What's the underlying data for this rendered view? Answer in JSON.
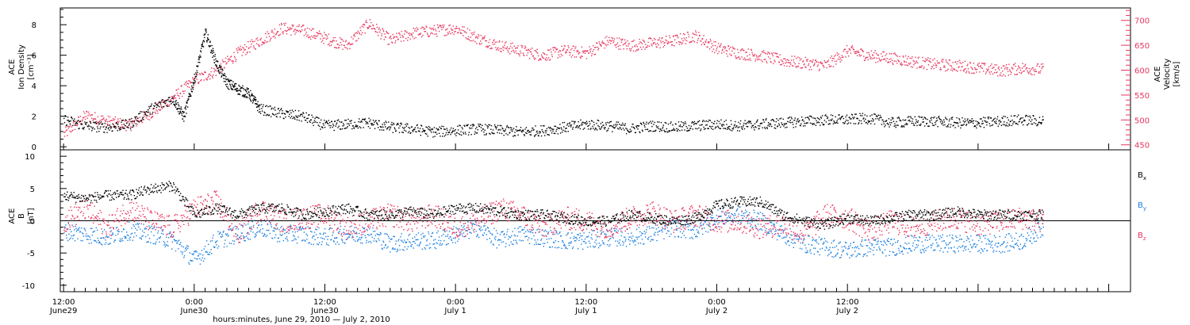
{
  "chart_data": [
    {
      "type": "scatter",
      "panel": "top",
      "ylabel_lines": [
        "ACE",
        "Ion Density",
        "[cm⁻³]"
      ],
      "ylabel_right_lines": [
        "ACE",
        "Velocity",
        "[km/s]"
      ],
      "xlim_hours": [
        -0.3,
        98
      ],
      "ylim_left": [
        -0.2,
        9.1
      ],
      "yticks_left": [
        0,
        2,
        4,
        6,
        8
      ],
      "ylim_right": [
        440,
        725
      ],
      "yticks_right": [
        450,
        500,
        550,
        600,
        650,
        700
      ],
      "series": [
        {
          "color": "#000000",
          "axis": "left",
          "points": [
            [
              0,
              1.8
            ],
            [
              2,
              1.4
            ],
            [
              4,
              1.3
            ],
            [
              6,
              1.5
            ],
            [
              8,
              2.5
            ],
            [
              10,
              3.2
            ],
            [
              11,
              2.0
            ],
            [
              12,
              4.5
            ],
            [
              13,
              7.5
            ],
            [
              14,
              5.5
            ],
            [
              15,
              4.2
            ],
            [
              16,
              3.8
            ],
            [
              17,
              3.5
            ],
            [
              18,
              2.5
            ],
            [
              20,
              2.2
            ],
            [
              22,
              2.0
            ],
            [
              24,
              1.4
            ],
            [
              26,
              1.5
            ],
            [
              28,
              1.6
            ],
            [
              30,
              1.3
            ],
            [
              32,
              1.2
            ],
            [
              34,
              1.0
            ],
            [
              36,
              1.1
            ],
            [
              38,
              1.2
            ],
            [
              40,
              1.1
            ],
            [
              42,
              1.0
            ],
            [
              44,
              1.1
            ],
            [
              46,
              1.3
            ],
            [
              48,
              1.5
            ],
            [
              50,
              1.4
            ],
            [
              52,
              1.2
            ],
            [
              54,
              1.4
            ],
            [
              56,
              1.3
            ],
            [
              58,
              1.4
            ],
            [
              60,
              1.5
            ],
            [
              62,
              1.4
            ],
            [
              64,
              1.5
            ],
            [
              66,
              1.6
            ],
            [
              68,
              1.7
            ],
            [
              70,
              1.8
            ],
            [
              72,
              1.8
            ],
            [
              74,
              1.9
            ],
            [
              76,
              1.6
            ],
            [
              78,
              1.7
            ],
            [
              80,
              1.7
            ],
            [
              82,
              1.6
            ],
            [
              84,
              1.6
            ],
            [
              86,
              1.7
            ],
            [
              88,
              1.8
            ],
            [
              90,
              1.7
            ]
          ]
        },
        {
          "color": "#e8355d",
          "axis": "right",
          "points": [
            [
              0,
              472
            ],
            [
              2,
              510
            ],
            [
              4,
              498
            ],
            [
              6,
              490
            ],
            [
              8,
              515
            ],
            [
              10,
              545
            ],
            [
              12,
              580
            ],
            [
              14,
              600
            ],
            [
              16,
              635
            ],
            [
              18,
              660
            ],
            [
              20,
              685
            ],
            [
              22,
              680
            ],
            [
              24,
              665
            ],
            [
              26,
              650
            ],
            [
              28,
              695
            ],
            [
              30,
              660
            ],
            [
              32,
              675
            ],
            [
              34,
              680
            ],
            [
              36,
              685
            ],
            [
              38,
              665
            ],
            [
              40,
              650
            ],
            [
              42,
              640
            ],
            [
              44,
              630
            ],
            [
              46,
              640
            ],
            [
              48,
              635
            ],
            [
              50,
              660
            ],
            [
              52,
              650
            ],
            [
              54,
              655
            ],
            [
              56,
              660
            ],
            [
              58,
              670
            ],
            [
              60,
              645
            ],
            [
              62,
              635
            ],
            [
              64,
              630
            ],
            [
              66,
              620
            ],
            [
              68,
              615
            ],
            [
              70,
              610
            ],
            [
              72,
              640
            ],
            [
              74,
              630
            ],
            [
              76,
              625
            ],
            [
              78,
              618
            ],
            [
              80,
              612
            ],
            [
              82,
              610
            ],
            [
              84,
              605
            ],
            [
              86,
              600
            ],
            [
              88,
              605
            ],
            [
              90,
              602
            ]
          ]
        }
      ]
    },
    {
      "type": "scatter",
      "panel": "bottom",
      "ylabel_lines": [
        "ACE",
        "B",
        "[nT]"
      ],
      "xlim_hours": [
        -0.3,
        98
      ],
      "ylim": [
        -11,
        11
      ],
      "yticks": [
        -10,
        -5,
        0,
        5,
        10
      ],
      "zero_line": true,
      "legend_placement": "right",
      "series": [
        {
          "name": "Bx",
          "legend_base": "B",
          "legend_sub": "x",
          "color": "#000000",
          "points": [
            [
              0,
              4
            ],
            [
              2,
              3.5
            ],
            [
              4,
              4
            ],
            [
              6,
              4
            ],
            [
              8,
              5
            ],
            [
              10,
              5.5
            ],
            [
              12,
              1
            ],
            [
              14,
              2
            ],
            [
              16,
              1
            ],
            [
              18,
              2
            ],
            [
              20,
              2
            ],
            [
              22,
              1
            ],
            [
              24,
              1.5
            ],
            [
              26,
              2
            ],
            [
              28,
              1
            ],
            [
              30,
              1
            ],
            [
              32,
              1.5
            ],
            [
              34,
              1
            ],
            [
              36,
              2
            ],
            [
              38,
              2
            ],
            [
              40,
              1.5
            ],
            [
              42,
              1
            ],
            [
              44,
              1
            ],
            [
              46,
              0.5
            ],
            [
              48,
              0
            ],
            [
              50,
              0
            ],
            [
              52,
              1
            ],
            [
              54,
              0.5
            ],
            [
              56,
              0
            ],
            [
              58,
              0.5
            ],
            [
              60,
              2.5
            ],
            [
              62,
              3
            ],
            [
              64,
              3
            ],
            [
              66,
              1
            ],
            [
              68,
              0
            ],
            [
              70,
              -0.5
            ],
            [
              72,
              0.5
            ],
            [
              74,
              0
            ],
            [
              76,
              0.5
            ],
            [
              78,
              1
            ],
            [
              80,
              1
            ],
            [
              82,
              1.5
            ],
            [
              84,
              1
            ],
            [
              86,
              1
            ],
            [
              88,
              1
            ],
            [
              90,
              1
            ]
          ]
        },
        {
          "name": "By",
          "legend_base": "B",
          "legend_sub": "y",
          "color": "#1a7fe0",
          "points": [
            [
              0,
              -1.5
            ],
            [
              2,
              -2
            ],
            [
              4,
              -2.5
            ],
            [
              6,
              -1.5
            ],
            [
              8,
              -2
            ],
            [
              10,
              -3
            ],
            [
              12,
              -6
            ],
            [
              14,
              -3
            ],
            [
              16,
              -2
            ],
            [
              18,
              -1
            ],
            [
              20,
              -2
            ],
            [
              22,
              -2
            ],
            [
              24,
              -2.5
            ],
            [
              26,
              -2
            ],
            [
              28,
              -2
            ],
            [
              30,
              -3.5
            ],
            [
              32,
              -3
            ],
            [
              34,
              -3
            ],
            [
              36,
              -2
            ],
            [
              38,
              -1
            ],
            [
              40,
              -3
            ],
            [
              42,
              -2
            ],
            [
              44,
              -2.5
            ],
            [
              46,
              -3
            ],
            [
              48,
              -3
            ],
            [
              50,
              -2.5
            ],
            [
              52,
              -2.5
            ],
            [
              54,
              -2
            ],
            [
              56,
              -1
            ],
            [
              58,
              -1.5
            ],
            [
              60,
              0.5
            ],
            [
              62,
              1
            ],
            [
              64,
              0
            ],
            [
              66,
              -2
            ],
            [
              68,
              -3.5
            ],
            [
              70,
              -4
            ],
            [
              72,
              -4.5
            ],
            [
              74,
              -4
            ],
            [
              76,
              -4
            ],
            [
              78,
              -3.5
            ],
            [
              80,
              -3.5
            ],
            [
              82,
              -3.5
            ],
            [
              84,
              -3.5
            ],
            [
              86,
              -3.5
            ],
            [
              88,
              -3
            ],
            [
              90,
              -1
            ]
          ]
        },
        {
          "name": "Bz",
          "legend_base": "B",
          "legend_sub": "z",
          "color": "#e8355d",
          "points": [
            [
              0,
              0
            ],
            [
              2,
              2
            ],
            [
              4,
              -1
            ],
            [
              6,
              2
            ],
            [
              8,
              0
            ],
            [
              10,
              -1
            ],
            [
              12,
              2
            ],
            [
              14,
              3
            ],
            [
              16,
              -2
            ],
            [
              18,
              2
            ],
            [
              20,
              0
            ],
            [
              22,
              0.5
            ],
            [
              24,
              1
            ],
            [
              26,
              -1
            ],
            [
              28,
              0
            ],
            [
              30,
              1
            ],
            [
              32,
              0
            ],
            [
              34,
              1
            ],
            [
              36,
              -1
            ],
            [
              38,
              0
            ],
            [
              40,
              2
            ],
            [
              42,
              1
            ],
            [
              44,
              -1
            ],
            [
              46,
              0.5
            ],
            [
              48,
              0
            ],
            [
              50,
              -1
            ],
            [
              52,
              0.5
            ],
            [
              54,
              1.5
            ],
            [
              56,
              0
            ],
            [
              58,
              1
            ],
            [
              60,
              0
            ],
            [
              62,
              0
            ],
            [
              64,
              -1
            ],
            [
              66,
              -0.5
            ],
            [
              68,
              -2
            ],
            [
              70,
              1
            ],
            [
              72,
              0.5
            ],
            [
              74,
              -1.5
            ],
            [
              76,
              0
            ],
            [
              78,
              -1
            ],
            [
              80,
              0
            ],
            [
              82,
              0.5
            ],
            [
              84,
              -0.5
            ],
            [
              86,
              0
            ],
            [
              88,
              0.5
            ],
            [
              90,
              0
            ]
          ]
        }
      ]
    }
  ],
  "x_ticks": [
    {
      "hours": 0,
      "time": "12:00",
      "date": "June29"
    },
    {
      "hours": 12,
      "time": "0:00",
      "date": "June30"
    },
    {
      "hours": 24,
      "time": "12:00",
      "date": "June30"
    },
    {
      "hours": 36,
      "time": "0:00",
      "date": "July 1"
    },
    {
      "hours": 48,
      "time": "12:00",
      "date": "July 1"
    },
    {
      "hours": 60,
      "time": "0:00",
      "date": "July 2"
    },
    {
      "hours": 72,
      "time": "12:00",
      "date": "July 2"
    }
  ],
  "xlabel": "hours:minutes, June 29, 2010 — July  2, 2010",
  "colors": {
    "black": "#000000",
    "blue": "#1a7fe0",
    "pink": "#e8355d"
  }
}
